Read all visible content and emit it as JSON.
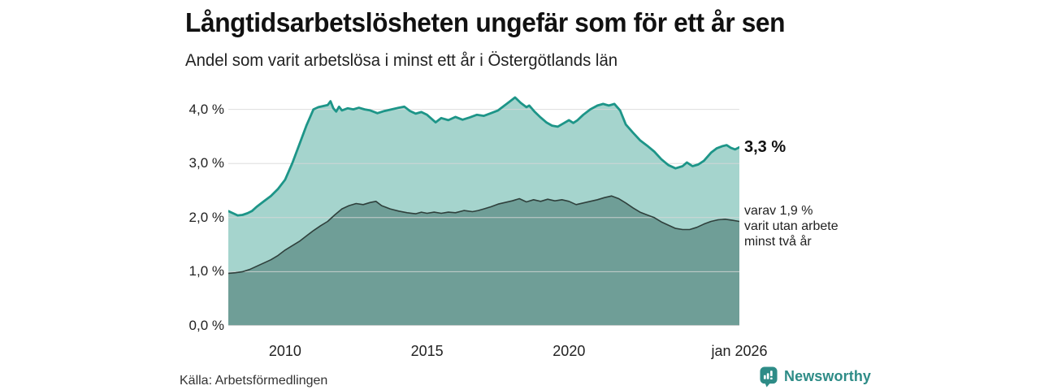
{
  "header": {
    "title": "Långtidsarbetslösheten ungefär som för ett år sen",
    "subtitle": "Andel som varit arbetslösa i minst ett år i Östergötlands län"
  },
  "annotations": {
    "total_end_value": "3,3 %",
    "two_year_note": "varav 1,9 %\nvarit utan arbete\nminst två år"
  },
  "footer": {
    "source": "Källa: Arbetsförmedlingen",
    "brand": "Newsworthy"
  },
  "colors": {
    "line_total": "#1d9588",
    "area_total": "#a5d4cd",
    "line_two_year": "#2f403c",
    "area_two_year": "#6f9e97",
    "gridline": "#d7d7d7",
    "baseline": "#c6cbca",
    "brand_teal": "#2e8c87",
    "text_dark": "#111111"
  },
  "chart_data": {
    "type": "area",
    "title": "Långtidsarbetslösheten ungefär som för ett år sen",
    "subtitle": "Andel som varit arbetslösa i minst ett år i Östergötlands län",
    "unit": "%",
    "x_range": [
      2008,
      2026
    ],
    "y_range": [
      0,
      4.4
    ],
    "grid": true,
    "y_ticks": [
      {
        "value": 0,
        "label": "0,0 %"
      },
      {
        "value": 1,
        "label": "1,0 %"
      },
      {
        "value": 2,
        "label": "2,0 %"
      },
      {
        "value": 3,
        "label": "3,0 %"
      },
      {
        "value": 4,
        "label": "4,0 %"
      }
    ],
    "x_ticks": [
      {
        "year": 2010,
        "label": "2010"
      },
      {
        "year": 2015,
        "label": "2015"
      },
      {
        "year": 2020,
        "label": "2020"
      },
      {
        "year": 2026,
        "label": "jan 2026"
      }
    ],
    "series": [
      {
        "name": "Arbetslösa minst ett år",
        "end_label": "3,3 %",
        "end_value": 3.3,
        "points": [
          [
            2008.0,
            2.12
          ],
          [
            2008.17,
            2.08
          ],
          [
            2008.33,
            2.04
          ],
          [
            2008.5,
            2.05
          ],
          [
            2008.67,
            2.08
          ],
          [
            2008.83,
            2.12
          ],
          [
            2009.0,
            2.2
          ],
          [
            2009.25,
            2.3
          ],
          [
            2009.5,
            2.4
          ],
          [
            2009.75,
            2.53
          ],
          [
            2010.0,
            2.7
          ],
          [
            2010.25,
            3.0
          ],
          [
            2010.5,
            3.35
          ],
          [
            2010.75,
            3.7
          ],
          [
            2011.0,
            4.0
          ],
          [
            2011.17,
            4.04
          ],
          [
            2011.33,
            4.06
          ],
          [
            2011.5,
            4.08
          ],
          [
            2011.6,
            4.15
          ],
          [
            2011.7,
            4.02
          ],
          [
            2011.8,
            3.96
          ],
          [
            2011.9,
            4.05
          ],
          [
            2012.0,
            3.98
          ],
          [
            2012.2,
            4.02
          ],
          [
            2012.4,
            4.0
          ],
          [
            2012.6,
            4.03
          ],
          [
            2012.8,
            4.0
          ],
          [
            2013.0,
            3.98
          ],
          [
            2013.25,
            3.93
          ],
          [
            2013.5,
            3.97
          ],
          [
            2013.75,
            4.0
          ],
          [
            2014.0,
            4.03
          ],
          [
            2014.2,
            4.05
          ],
          [
            2014.4,
            3.97
          ],
          [
            2014.6,
            3.92
          ],
          [
            2014.8,
            3.95
          ],
          [
            2015.0,
            3.9
          ],
          [
            2015.3,
            3.76
          ],
          [
            2015.5,
            3.84
          ],
          [
            2015.75,
            3.8
          ],
          [
            2016.0,
            3.86
          ],
          [
            2016.25,
            3.81
          ],
          [
            2016.5,
            3.85
          ],
          [
            2016.75,
            3.9
          ],
          [
            2017.0,
            3.88
          ],
          [
            2017.25,
            3.93
          ],
          [
            2017.5,
            3.98
          ],
          [
            2017.75,
            4.08
          ],
          [
            2018.0,
            4.18
          ],
          [
            2018.1,
            4.22
          ],
          [
            2018.3,
            4.12
          ],
          [
            2018.5,
            4.04
          ],
          [
            2018.6,
            4.07
          ],
          [
            2018.8,
            3.95
          ],
          [
            2019.0,
            3.85
          ],
          [
            2019.2,
            3.76
          ],
          [
            2019.4,
            3.7
          ],
          [
            2019.6,
            3.68
          ],
          [
            2019.8,
            3.74
          ],
          [
            2020.0,
            3.8
          ],
          [
            2020.15,
            3.75
          ],
          [
            2020.3,
            3.8
          ],
          [
            2020.5,
            3.9
          ],
          [
            2020.75,
            4.0
          ],
          [
            2021.0,
            4.07
          ],
          [
            2021.2,
            4.1
          ],
          [
            2021.4,
            4.07
          ],
          [
            2021.6,
            4.1
          ],
          [
            2021.8,
            3.98
          ],
          [
            2022.0,
            3.72
          ],
          [
            2022.25,
            3.57
          ],
          [
            2022.5,
            3.43
          ],
          [
            2022.75,
            3.33
          ],
          [
            2023.0,
            3.22
          ],
          [
            2023.25,
            3.08
          ],
          [
            2023.5,
            2.97
          ],
          [
            2023.75,
            2.91
          ],
          [
            2024.0,
            2.95
          ],
          [
            2024.15,
            3.02
          ],
          [
            2024.35,
            2.95
          ],
          [
            2024.55,
            2.98
          ],
          [
            2024.75,
            3.05
          ],
          [
            2025.0,
            3.2
          ],
          [
            2025.2,
            3.28
          ],
          [
            2025.4,
            3.32
          ],
          [
            2025.55,
            3.34
          ],
          [
            2025.7,
            3.29
          ],
          [
            2025.85,
            3.26
          ],
          [
            2026.0,
            3.3
          ]
        ]
      },
      {
        "name": "varav arbetslösa minst två år",
        "end_label": "varav 1,9 %",
        "end_value": 1.9,
        "points": [
          [
            2008.0,
            0.97
          ],
          [
            2008.25,
            0.98
          ],
          [
            2008.5,
            1.0
          ],
          [
            2008.75,
            1.04
          ],
          [
            2009.0,
            1.1
          ],
          [
            2009.25,
            1.16
          ],
          [
            2009.5,
            1.22
          ],
          [
            2009.75,
            1.3
          ],
          [
            2010.0,
            1.4
          ],
          [
            2010.25,
            1.48
          ],
          [
            2010.5,
            1.56
          ],
          [
            2010.75,
            1.66
          ],
          [
            2011.0,
            1.76
          ],
          [
            2011.25,
            1.85
          ],
          [
            2011.5,
            1.93
          ],
          [
            2011.75,
            2.05
          ],
          [
            2012.0,
            2.16
          ],
          [
            2012.25,
            2.22
          ],
          [
            2012.5,
            2.26
          ],
          [
            2012.75,
            2.24
          ],
          [
            2013.0,
            2.28
          ],
          [
            2013.2,
            2.3
          ],
          [
            2013.4,
            2.22
          ],
          [
            2013.7,
            2.16
          ],
          [
            2014.0,
            2.12
          ],
          [
            2014.3,
            2.09
          ],
          [
            2014.6,
            2.07
          ],
          [
            2014.8,
            2.1
          ],
          [
            2015.0,
            2.08
          ],
          [
            2015.25,
            2.1
          ],
          [
            2015.5,
            2.08
          ],
          [
            2015.75,
            2.1
          ],
          [
            2016.0,
            2.09
          ],
          [
            2016.3,
            2.13
          ],
          [
            2016.6,
            2.11
          ],
          [
            2016.8,
            2.13
          ],
          [
            2017.0,
            2.16
          ],
          [
            2017.25,
            2.2
          ],
          [
            2017.5,
            2.25
          ],
          [
            2017.75,
            2.28
          ],
          [
            2018.0,
            2.31
          ],
          [
            2018.25,
            2.35
          ],
          [
            2018.5,
            2.29
          ],
          [
            2018.75,
            2.33
          ],
          [
            2019.0,
            2.3
          ],
          [
            2019.25,
            2.34
          ],
          [
            2019.5,
            2.31
          ],
          [
            2019.75,
            2.33
          ],
          [
            2020.0,
            2.3
          ],
          [
            2020.25,
            2.24
          ],
          [
            2020.5,
            2.27
          ],
          [
            2020.75,
            2.3
          ],
          [
            2021.0,
            2.33
          ],
          [
            2021.25,
            2.37
          ],
          [
            2021.5,
            2.4
          ],
          [
            2021.75,
            2.35
          ],
          [
            2022.0,
            2.27
          ],
          [
            2022.25,
            2.18
          ],
          [
            2022.5,
            2.1
          ],
          [
            2022.75,
            2.05
          ],
          [
            2023.0,
            2.0
          ],
          [
            2023.25,
            1.92
          ],
          [
            2023.5,
            1.86
          ],
          [
            2023.75,
            1.8
          ],
          [
            2024.0,
            1.78
          ],
          [
            2024.25,
            1.78
          ],
          [
            2024.5,
            1.82
          ],
          [
            2024.75,
            1.88
          ],
          [
            2025.0,
            1.93
          ],
          [
            2025.25,
            1.96
          ],
          [
            2025.5,
            1.97
          ],
          [
            2025.75,
            1.95
          ],
          [
            2026.0,
            1.93
          ]
        ]
      }
    ]
  }
}
